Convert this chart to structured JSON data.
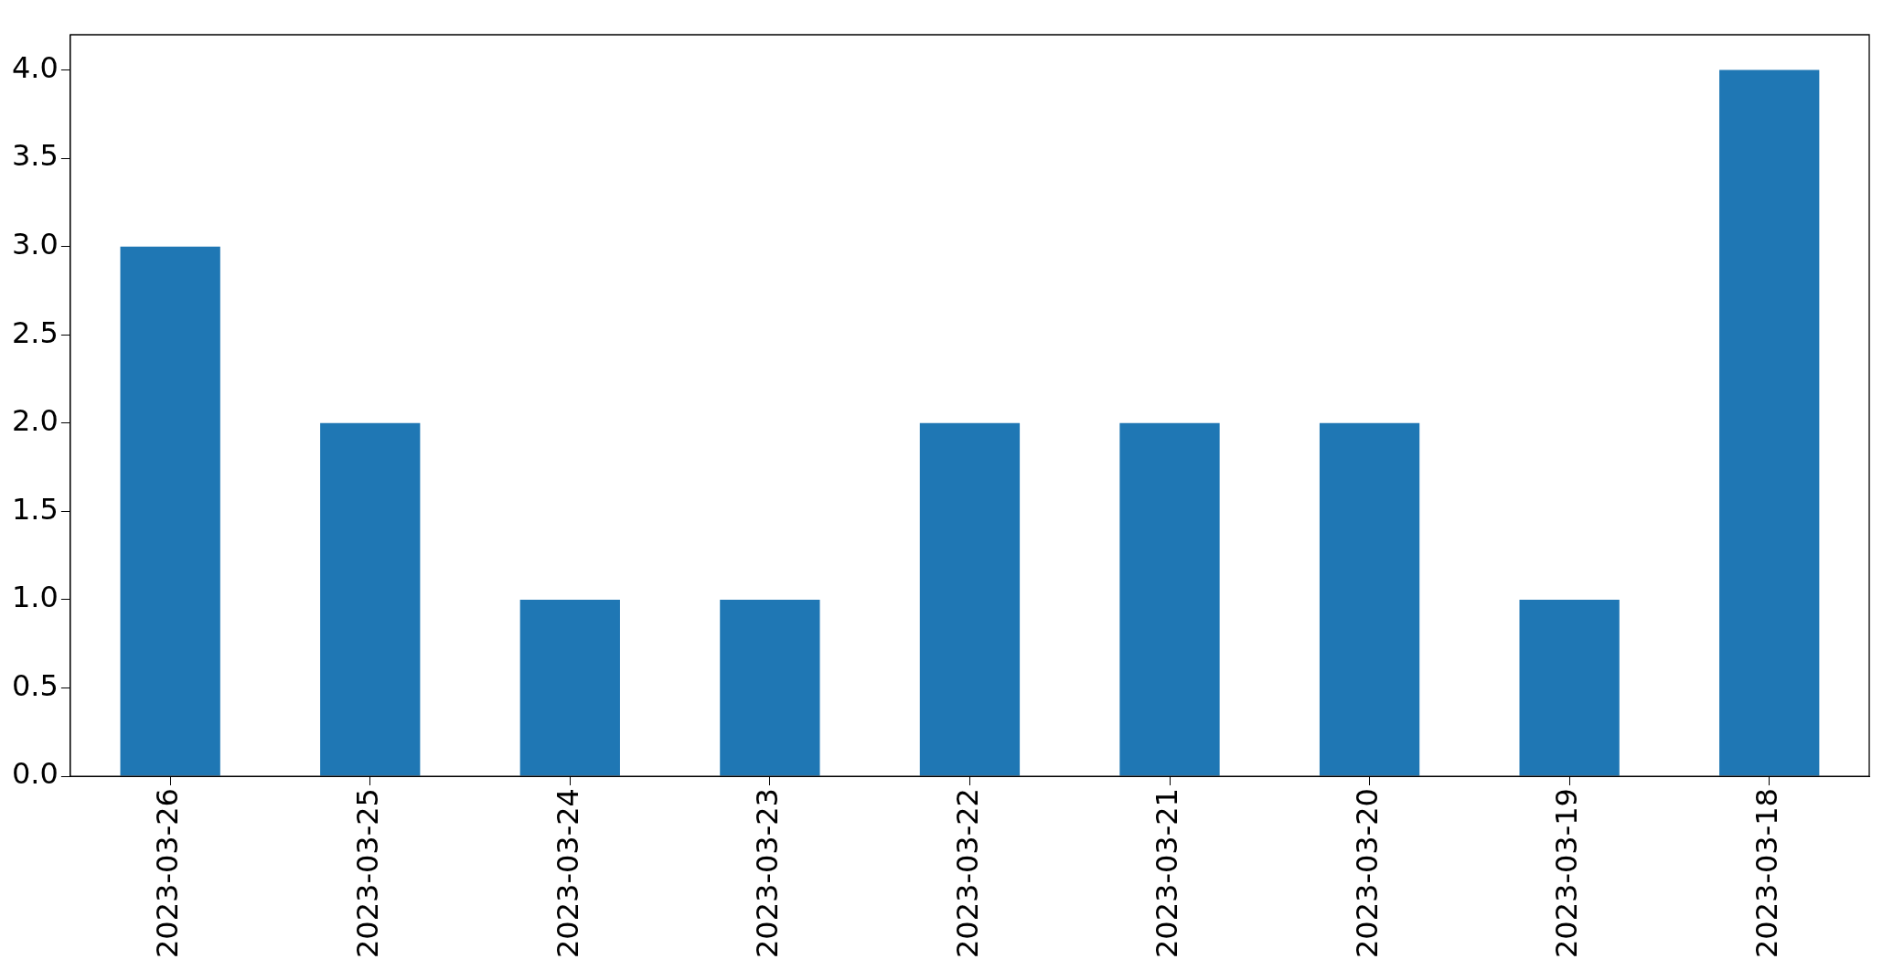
{
  "chart_data": {
    "type": "bar",
    "categories": [
      "2023-03-26",
      "2023-03-25",
      "2023-03-24",
      "2023-03-23",
      "2023-03-22",
      "2023-03-21",
      "2023-03-20",
      "2023-03-19",
      "2023-03-18"
    ],
    "values": [
      3,
      2,
      1,
      1,
      2,
      2,
      2,
      1,
      4
    ],
    "color": "#1f77b4",
    "ylim": [
      0,
      4.2
    ],
    "yticks": [
      {
        "value": 0,
        "label": "0.0"
      },
      {
        "value": 0.5,
        "label": "0.5"
      },
      {
        "value": 1,
        "label": "1.0"
      },
      {
        "value": 1.5,
        "label": "1.5"
      },
      {
        "value": 2,
        "label": "2.0"
      },
      {
        "value": 2.5,
        "label": "2.5"
      },
      {
        "value": 3,
        "label": "3.0"
      },
      {
        "value": 3.5,
        "label": "3.5"
      },
      {
        "value": 4,
        "label": "4.0"
      }
    ],
    "grid": false,
    "legend": false
  }
}
